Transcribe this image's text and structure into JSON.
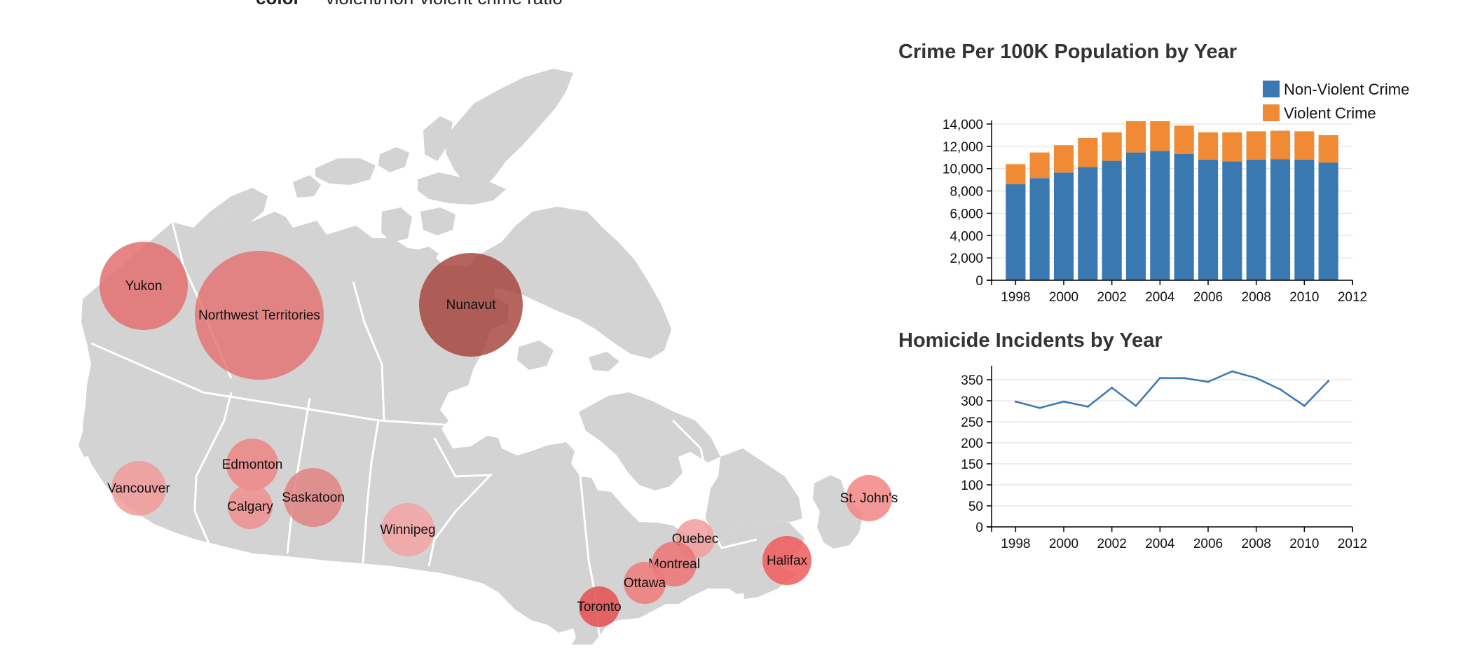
{
  "header_legend": {
    "key": "color",
    "text": "violent/non-violent crime ratio"
  },
  "colors": {
    "land": "#d3d3d3",
    "border": "#ffffff",
    "non_violent": "#3a78b2",
    "violent": "#f08a35",
    "line": "#3a78b2",
    "grid": "#dddddd"
  },
  "map": {
    "cities": [
      {
        "name": "Yukon",
        "color": "#e36e6e",
        "opacity": 0.85
      },
      {
        "name": "Northwest Territories",
        "color": "#e56f6f",
        "opacity": 0.8
      },
      {
        "name": "Nunavut",
        "color": "#a6423a",
        "opacity": 0.82
      },
      {
        "name": "Vancouver",
        "color": "#f29a9a",
        "opacity": 0.85
      },
      {
        "name": "Edmonton",
        "color": "#ec8484",
        "opacity": 0.85
      },
      {
        "name": "Calgary",
        "color": "#ef8e8e",
        "opacity": 0.85
      },
      {
        "name": "Saskatoon",
        "color": "#e28282",
        "opacity": 0.85
      },
      {
        "name": "Winnipeg",
        "color": "#f3a3a3",
        "opacity": 0.85
      },
      {
        "name": "Quebec",
        "color": "#f19c9c",
        "opacity": 0.85
      },
      {
        "name": "Montreal",
        "color": "#ec7474",
        "opacity": 0.85
      },
      {
        "name": "Ottawa",
        "color": "#ef7b7b",
        "opacity": 0.85
      },
      {
        "name": "Toronto",
        "color": "#e35353",
        "opacity": 0.88
      },
      {
        "name": "Halifax",
        "color": "#ef5a5a",
        "opacity": 0.85
      },
      {
        "name": "St. John's",
        "color": "#f28585",
        "opacity": 0.85
      }
    ]
  },
  "chart_data": [
    {
      "type": "bar",
      "stacked": true,
      "title": "Crime Per 100K Population by Year",
      "x": [
        1998,
        1999,
        2000,
        2001,
        2002,
        2003,
        2004,
        2005,
        2006,
        2007,
        2008,
        2009,
        2010,
        2011
      ],
      "xticks": [
        1998,
        2000,
        2002,
        2004,
        2006,
        2008,
        2010,
        2012
      ],
      "xlim": [
        1997,
        2012
      ],
      "ylim": [
        0,
        14000
      ],
      "yticks": [
        0,
        2000,
        4000,
        6000,
        8000,
        10000,
        12000,
        14000
      ],
      "ytick_labels": [
        "0",
        "2,000",
        "4,000",
        "6,000",
        "8,000",
        "10,000",
        "12,000",
        "14,000"
      ],
      "legend_position": "top-right",
      "grid": true,
      "series": [
        {
          "name": "Non-Violent Crime",
          "values": [
            8600,
            9150,
            9650,
            10150,
            10700,
            11450,
            11600,
            11300,
            10800,
            10650,
            10800,
            10850,
            10800,
            10550
          ]
        },
        {
          "name": "Violent Crime",
          "values": [
            1800,
            2300,
            2450,
            2600,
            2550,
            2800,
            2650,
            2550,
            2450,
            2600,
            2550,
            2550,
            2550,
            2450
          ]
        }
      ]
    },
    {
      "type": "line",
      "title": "Homicide Incidents by Year",
      "x": [
        1998,
        1999,
        2000,
        2001,
        2002,
        2003,
        2004,
        2005,
        2006,
        2007,
        2008,
        2009,
        2010,
        2011
      ],
      "xticks": [
        1998,
        2000,
        2002,
        2004,
        2006,
        2008,
        2010,
        2012
      ],
      "xlim": [
        1997,
        2012
      ],
      "ylim": [
        0,
        370
      ],
      "yticks": [
        0,
        50,
        100,
        150,
        200,
        250,
        300,
        350
      ],
      "grid": true,
      "series": [
        {
          "values": [
            298,
            283,
            298,
            286,
            331,
            288,
            354,
            354,
            345,
            370,
            354,
            327,
            288,
            347
          ]
        }
      ]
    }
  ]
}
